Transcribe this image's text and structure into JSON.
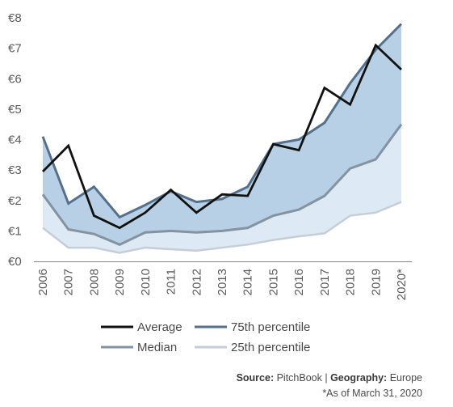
{
  "chart_data": {
    "type": "area",
    "categories": [
      "2006",
      "2007",
      "2008",
      "2009",
      "2010",
      "2011",
      "2012",
      "2013",
      "2014",
      "2015",
      "2016",
      "2017",
      "2018",
      "2019",
      "2020*"
    ],
    "y_tick_labels": [
      "€0",
      "€1",
      "€2",
      "€3",
      "€4",
      "€5",
      "€6",
      "€7",
      "€8"
    ],
    "ylim": [
      0,
      8
    ],
    "series": [
      {
        "name": "Average",
        "values": [
          2.95,
          3.8,
          1.5,
          1.1,
          1.6,
          2.35,
          1.6,
          2.2,
          2.15,
          3.85,
          3.65,
          5.7,
          5.15,
          7.1,
          6.3
        ],
        "color": "#111111"
      },
      {
        "name": "75th percentile",
        "values": [
          4.1,
          1.9,
          2.45,
          1.45,
          1.85,
          2.3,
          1.95,
          2.05,
          2.45,
          3.85,
          4.0,
          4.55,
          5.85,
          6.95,
          7.8
        ],
        "color": "#55708c"
      },
      {
        "name": "Median",
        "values": [
          2.2,
          1.05,
          0.9,
          0.55,
          0.95,
          1.0,
          0.95,
          1.0,
          1.1,
          1.5,
          1.7,
          2.15,
          3.05,
          3.35,
          4.5
        ],
        "color": "#8393a0"
      },
      {
        "name": "25th percentile",
        "values": [
          1.1,
          0.45,
          0.45,
          0.28,
          0.45,
          0.4,
          0.35,
          0.45,
          0.55,
          0.7,
          0.82,
          0.92,
          1.5,
          1.6,
          1.95
        ],
        "color": "#c5ced6"
      }
    ],
    "band_fills": {
      "upper": "#b8d0e6",
      "lower": "#dde9f4"
    },
    "legend_position": "bottom",
    "grid": false
  },
  "footer": {
    "source_label": "Source:",
    "source_value": " PitchBook | ",
    "geo_label": "Geography:",
    "geo_value": " Europe",
    "note": "*As of March 31, 2020"
  }
}
